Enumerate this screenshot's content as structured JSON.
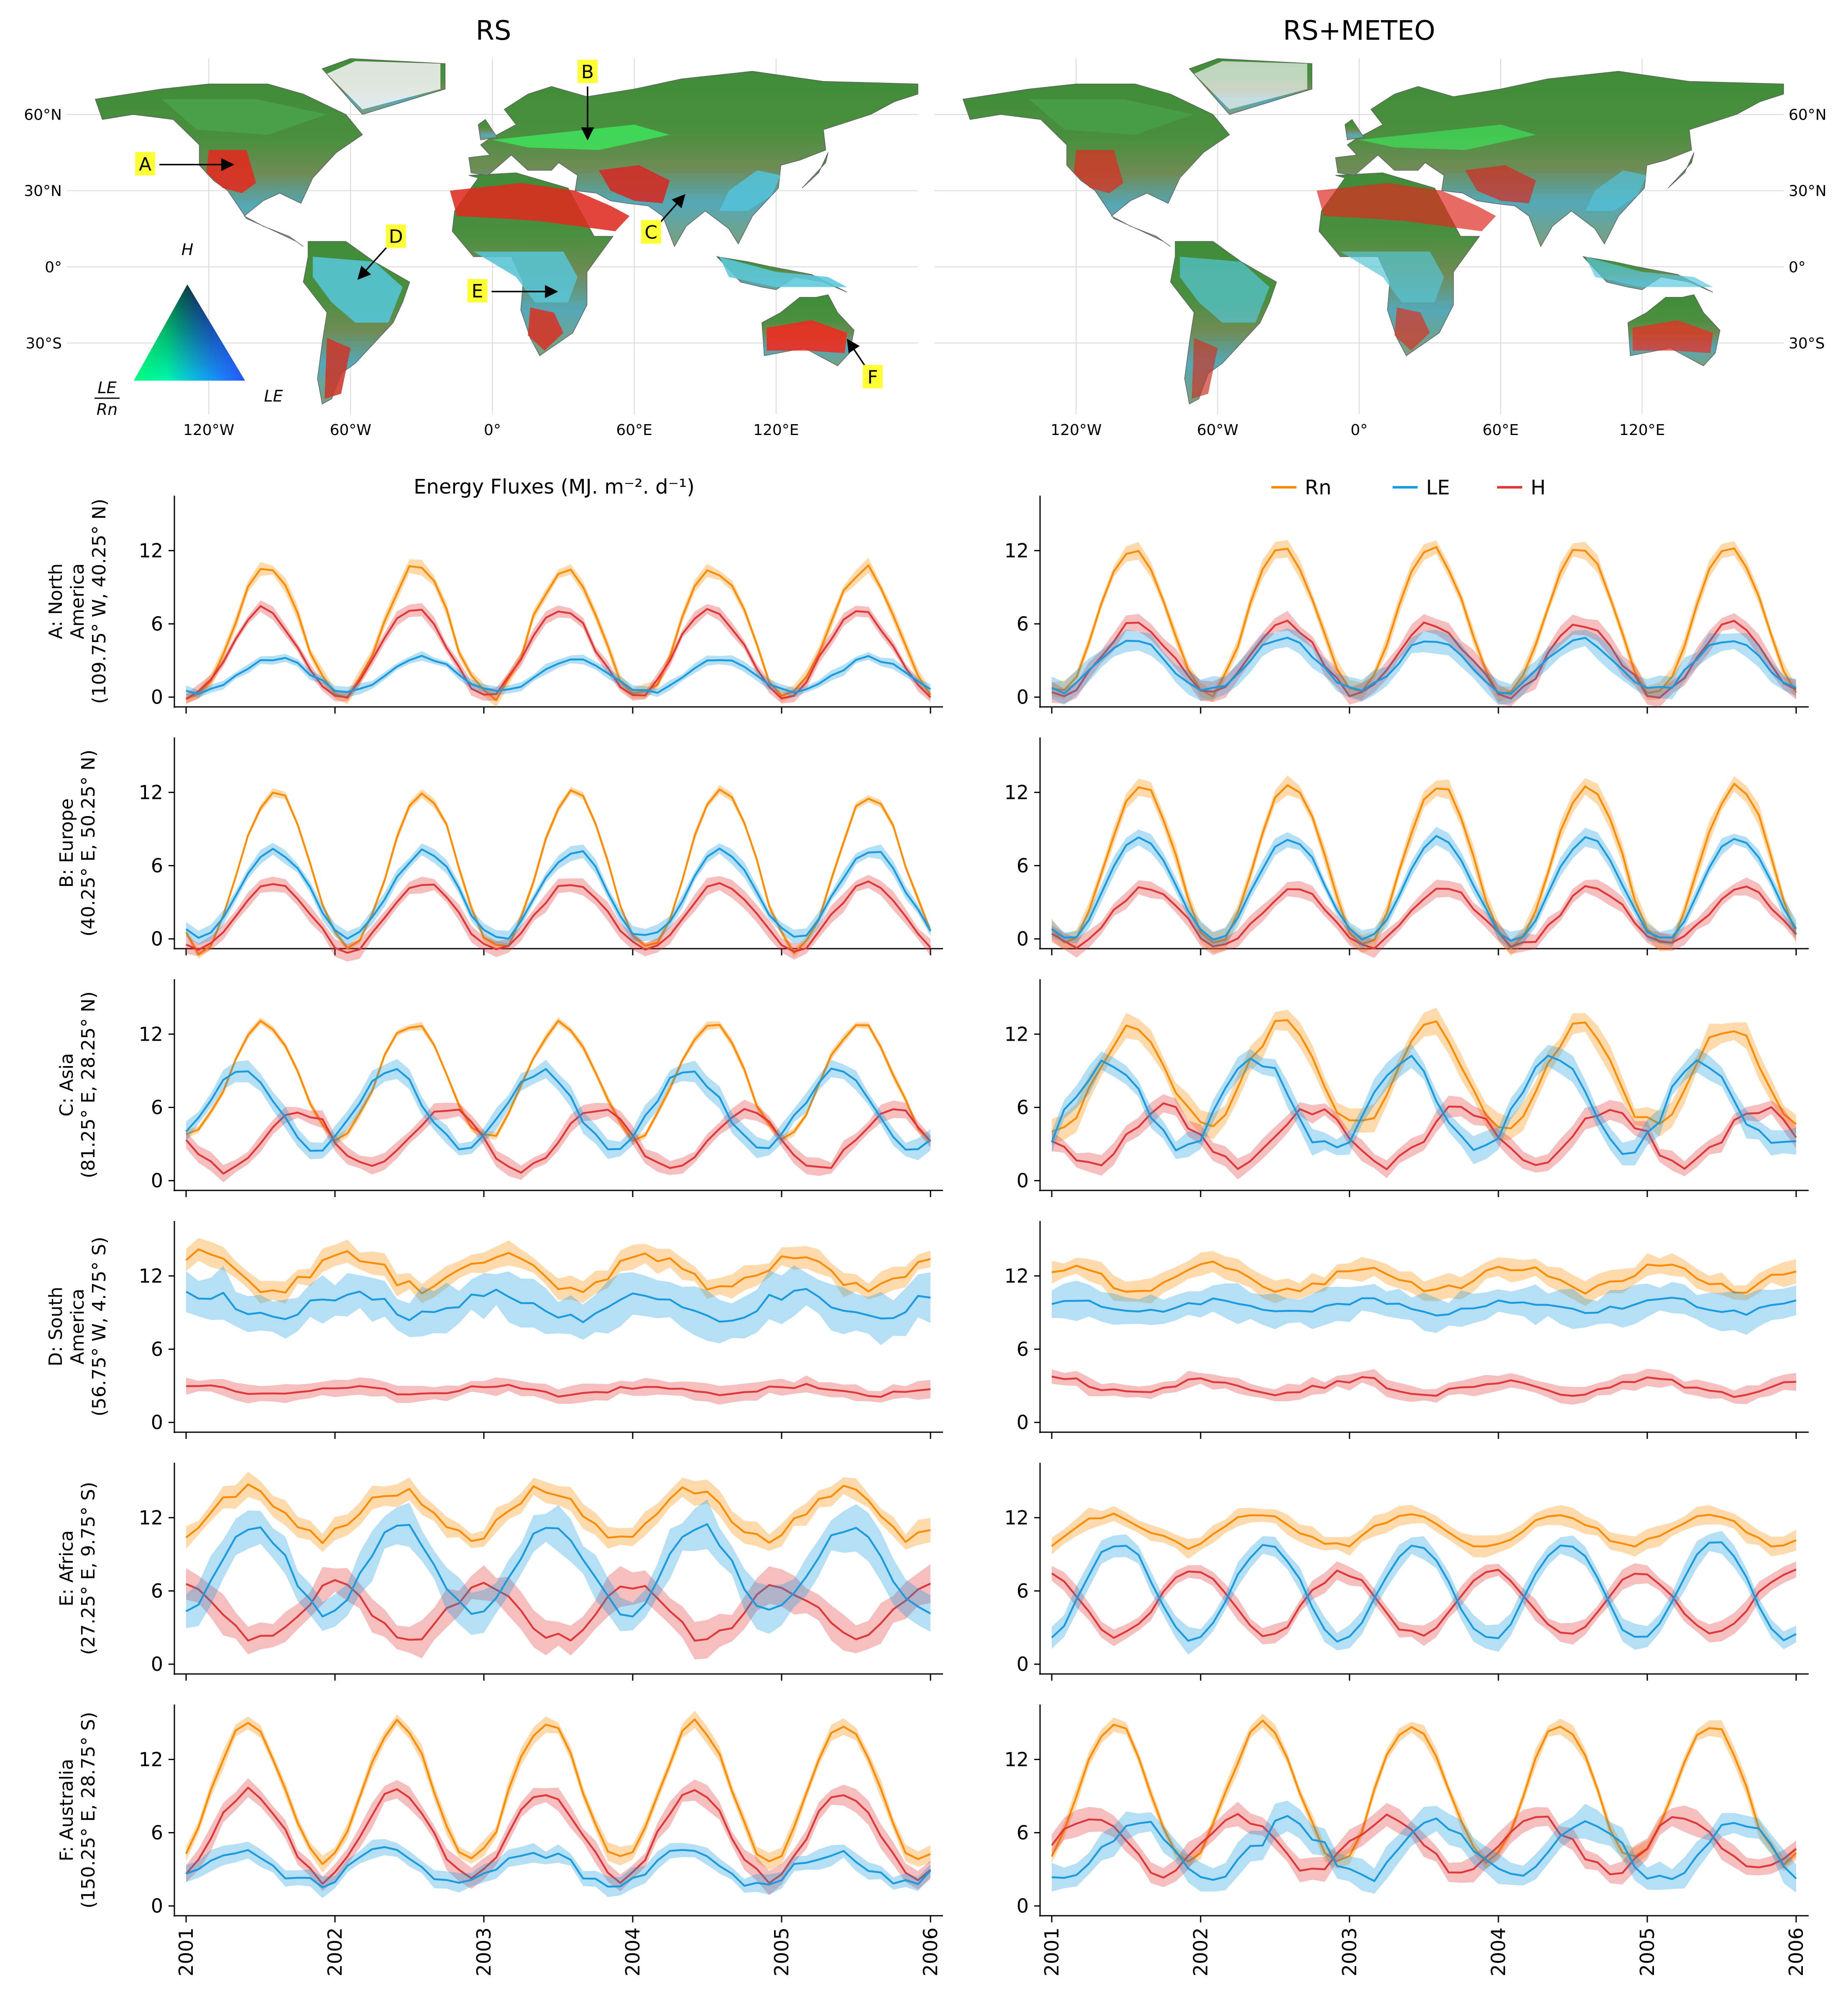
{
  "header": {
    "left_title": "RS",
    "right_title": "RS+METEO"
  },
  "map": {
    "lat_ticks": [
      "60°N",
      "30°N",
      "0°",
      "30°S"
    ],
    "lat_values": [
      60,
      30,
      0,
      -30
    ],
    "lon_ticks": [
      "120°W",
      "60°W",
      "0°",
      "60°E",
      "120°E"
    ],
    "lon_values": [
      -120,
      -60,
      0,
      60,
      120
    ],
    "triangle_labels": {
      "top": "H",
      "right": "LE",
      "left_num": "LE",
      "left_den": "Rn"
    },
    "markers": [
      {
        "letter": "A",
        "lon": -109.75,
        "lat": 40.25
      },
      {
        "letter": "B",
        "lon": 40.25,
        "lat": 50.25
      },
      {
        "letter": "C",
        "lon": 81.25,
        "lat": 28.25
      },
      {
        "letter": "D",
        "lon": -56.75,
        "lat": -4.75
      },
      {
        "letter": "E",
        "lon": 27.25,
        "lat": -9.75
      },
      {
        "letter": "F",
        "lon": 150.25,
        "lat": -28.75
      }
    ],
    "colors": {
      "H": "#ff2020",
      "LE": "#18e0ff",
      "Rn": "#2bb52b",
      "land_mid": "#4aa34a"
    }
  },
  "panel_header": {
    "flux_label": "Energy Fluxes (MJ. m⁻². d⁻¹)",
    "legend": [
      {
        "name": "Rn",
        "color": "#ff8c00"
      },
      {
        "name": "LE",
        "color": "#1a9be0"
      },
      {
        "name": "H",
        "color": "#e03838"
      }
    ]
  },
  "chart_data": {
    "type": "line",
    "x_range": [
      "2001-01",
      "2006-01"
    ],
    "x_ticks": [
      "2001",
      "2002",
      "2003",
      "2004",
      "2005",
      "2006"
    ],
    "series_colors": {
      "Rn": "#ff8c00",
      "LE": "#1a9be0",
      "H": "#e03838"
    },
    "columns": [
      "RS",
      "RS+METEO"
    ],
    "sites": [
      {
        "id": "A",
        "label": [
          "A: North",
          "America",
          "(109.75° W, 40.25° N)"
        ],
        "ylim": [
          -0.8,
          16.5
        ],
        "yticks": [
          0,
          6,
          12
        ],
        "RS": {
          "Rn": {
            "mean": 5.2,
            "amp": 5.3,
            "phase": 0.05,
            "noise": 0.5,
            "band": 0.5
          },
          "LE": {
            "mean": 1.8,
            "amp": 1.4,
            "phase": 0.1,
            "noise": 0.2,
            "band": 0.35
          },
          "H": {
            "mean": 3.6,
            "amp": 3.6,
            "phase": 0.02,
            "noise": 0.3,
            "band": 0.45
          }
        },
        "RS+METEO": {
          "Rn": {
            "mean": 6.2,
            "amp": 6.0,
            "phase": 0.05,
            "noise": 0.3,
            "band": 0.6
          },
          "LE": {
            "mean": 2.6,
            "amp": 2.1,
            "phase": 0.05,
            "noise": 0.3,
            "band": 0.8
          },
          "H": {
            "mean": 3.1,
            "amp": 2.9,
            "phase": 0.07,
            "noise": 0.4,
            "band": 0.7
          }
        }
      },
      {
        "id": "B",
        "label": [
          "B: Europe",
          "(40.25° E, 50.25° N)"
        ],
        "ylim": [
          -0.8,
          16.5
        ],
        "yticks": [
          0,
          6,
          12
        ],
        "RS": {
          "Rn": {
            "mean": 5.5,
            "amp": 6.4,
            "phase": 0.1,
            "noise": 0.4,
            "band": 0.3
          },
          "LE": {
            "mean": 3.6,
            "amp": 3.6,
            "phase": 0.1,
            "noise": 0.3,
            "band": 0.5
          },
          "H": {
            "mean": 1.9,
            "amp": 2.8,
            "phase": 0.09,
            "noise": 0.3,
            "band": 0.6
          }
        },
        "RS+METEO": {
          "Rn": {
            "mean": 6.0,
            "amp": 6.6,
            "phase": 0.1,
            "noise": 0.3,
            "band": 0.7
          },
          "LE": {
            "mean": 4.1,
            "amp": 4.2,
            "phase": 0.1,
            "noise": 0.2,
            "band": 0.6
          },
          "H": {
            "mean": 1.8,
            "amp": 2.4,
            "phase": 0.14,
            "noise": 0.3,
            "band": 0.6
          }
        }
      },
      {
        "id": "C",
        "label": [
          "C: Asia",
          "(81.25° E, 28.25° N)"
        ],
        "ylim": [
          -0.8,
          16.5
        ],
        "yticks": [
          0,
          6,
          12
        ],
        "RS": {
          "Rn": {
            "mean": 8.2,
            "amp": 4.6,
            "phase": 0.02,
            "noise": 0.4,
            "band": 0.3
          },
          "LE": {
            "mean": 5.8,
            "amp": 3.1,
            "phase": -0.13,
            "noise": 0.4,
            "band": 0.7
          },
          "H": {
            "mean": 3.4,
            "amp": 2.5,
            "phase": 0.25,
            "noise": 0.4,
            "band": 0.6
          }
        },
        "RS+METEO": {
          "Rn": {
            "mean": 8.6,
            "amp": 4.2,
            "phase": 0.05,
            "noise": 0.6,
            "band": 0.9
          },
          "LE": {
            "mean": 6.2,
            "amp": 3.6,
            "phase": -0.13,
            "noise": 0.6,
            "band": 0.9
          },
          "H": {
            "mean": 3.6,
            "amp": 2.3,
            "phase": 0.25,
            "noise": 0.5,
            "band": 0.7
          }
        }
      },
      {
        "id": "D",
        "label": [
          "D: South",
          "America",
          "(56.75° W, 4.75° S)"
        ],
        "ylim": [
          -0.8,
          16.5
        ],
        "yticks": [
          0,
          6,
          12
        ],
        "RS": {
          "Rn": {
            "mean": 12.3,
            "amp": 1.4,
            "phase": 0.6,
            "noise": 0.5,
            "band": 0.8
          },
          "LE": {
            "mean": 9.6,
            "amp": 1.0,
            "phase": 0.6,
            "noise": 0.5,
            "band": 1.7
          },
          "H": {
            "mean": 2.6,
            "amp": 0.4,
            "phase": 0.6,
            "noise": 0.2,
            "band": 0.6
          }
        },
        "RS+METEO": {
          "Rn": {
            "mean": 11.8,
            "amp": 1.0,
            "phase": 0.6,
            "noise": 0.4,
            "band": 0.8
          },
          "LE": {
            "mean": 9.5,
            "amp": 0.5,
            "phase": 0.6,
            "noise": 0.3,
            "band": 1.3
          },
          "H": {
            "mean": 2.9,
            "amp": 0.6,
            "phase": 0.55,
            "noise": 0.3,
            "band": 0.6
          }
        }
      },
      {
        "id": "E",
        "label": [
          "E: Africa",
          "(27.25° E, 9.75° S)"
        ],
        "ylim": [
          -0.8,
          16.5
        ],
        "yticks": [
          0,
          6,
          12
        ],
        "RS": {
          "Rn": {
            "mean": 12.3,
            "amp": 2.0,
            "phase": 0.9,
            "noise": 0.5,
            "band": 0.8
          },
          "LE": {
            "mean": 7.7,
            "amp": 3.5,
            "phase": 0.95,
            "noise": 0.5,
            "band": 1.6
          },
          "H": {
            "mean": 4.2,
            "amp": 2.2,
            "phase": 0.5,
            "noise": 0.5,
            "band": 1.3
          }
        },
        "RS+METEO": {
          "Rn": {
            "mean": 11.0,
            "amp": 1.3,
            "phase": 0.9,
            "noise": 0.3,
            "band": 0.7
          },
          "LE": {
            "mean": 6.0,
            "amp": 4.0,
            "phase": 0.95,
            "noise": 0.3,
            "band": 0.9
          },
          "H": {
            "mean": 5.0,
            "amp": 2.6,
            "phase": 0.45,
            "noise": 0.3,
            "band": 0.7
          }
        }
      },
      {
        "id": "F",
        "label": [
          "F: Australia",
          "(150.25° E, 28.75° S)"
        ],
        "ylim": [
          -0.8,
          16.5
        ],
        "yticks": [
          0,
          6,
          12
        ],
        "RS": {
          "Rn": {
            "mean": 9.3,
            "amp": 5.6,
            "phase": 0.92,
            "noise": 0.4,
            "band": 0.6
          },
          "LE": {
            "mean": 3.2,
            "amp": 1.3,
            "phase": 0.85,
            "noise": 0.5,
            "band": 0.7
          },
          "H": {
            "mean": 5.8,
            "amp": 3.6,
            "phase": 0.92,
            "noise": 0.4,
            "band": 0.8
          }
        },
        "RS+METEO": {
          "Rn": {
            "mean": 9.3,
            "amp": 5.6,
            "phase": 0.92,
            "noise": 0.4,
            "band": 0.6
          },
          "LE": {
            "mean": 4.6,
            "amp": 2.3,
            "phase": 0.1,
            "noise": 0.6,
            "band": 1.1
          },
          "H": {
            "mean": 5.0,
            "amp": 2.2,
            "phase": 0.75,
            "noise": 0.5,
            "band": 0.9
          }
        }
      }
    ]
  }
}
